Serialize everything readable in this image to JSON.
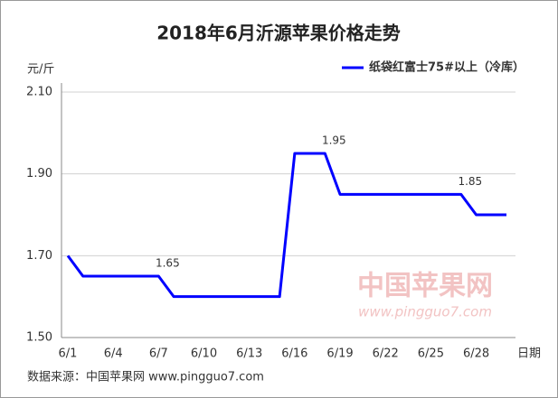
{
  "chart_data": {
    "type": "line",
    "title": "2018年6月沂源苹果价格走势",
    "y_label": "元/斤",
    "x_label": "日期",
    "source": "数据来源：中国苹果网 www.pingguo7.com",
    "watermark": "中国苹果网",
    "watermark_url": "www.pingguo7.com",
    "categories": [
      "6/1",
      null,
      null,
      "6/4",
      null,
      null,
      "6/7",
      null,
      null,
      "6/10",
      null,
      null,
      "6/13",
      null,
      null,
      "6/16",
      null,
      null,
      "6/19",
      null,
      null,
      "6/22",
      null,
      null,
      "6/25",
      null,
      null,
      "6/28",
      null,
      null
    ],
    "series": [
      {
        "name": "纸袋红富士75#以上（冷库）",
        "color": "#0000ff",
        "values": [
          1.7,
          1.65,
          1.65,
          1.65,
          1.65,
          1.65,
          1.65,
          1.6,
          1.6,
          1.6,
          1.6,
          1.6,
          1.6,
          1.6,
          1.6,
          1.95,
          1.95,
          1.95,
          1.85,
          1.85,
          1.85,
          1.85,
          1.85,
          1.85,
          1.85,
          1.85,
          1.85,
          1.8,
          1.8,
          1.8
        ],
        "value_labels": [
          null,
          null,
          null,
          null,
          null,
          null,
          "1.65",
          null,
          null,
          null,
          null,
          null,
          null,
          null,
          null,
          null,
          null,
          "1.95",
          null,
          null,
          null,
          null,
          null,
          null,
          null,
          null,
          "1.85",
          null,
          null,
          null
        ]
      }
    ],
    "ylim": [
      1.5,
      2.1
    ],
    "yticks": [
      {
        "value": 1.5,
        "label": "1.50"
      },
      {
        "value": 1.7,
        "label": "1.70"
      },
      {
        "value": 1.9,
        "label": "1.90"
      },
      {
        "value": 2.1,
        "label": "2.10"
      }
    ],
    "grid": true,
    "legend": "top-right"
  }
}
